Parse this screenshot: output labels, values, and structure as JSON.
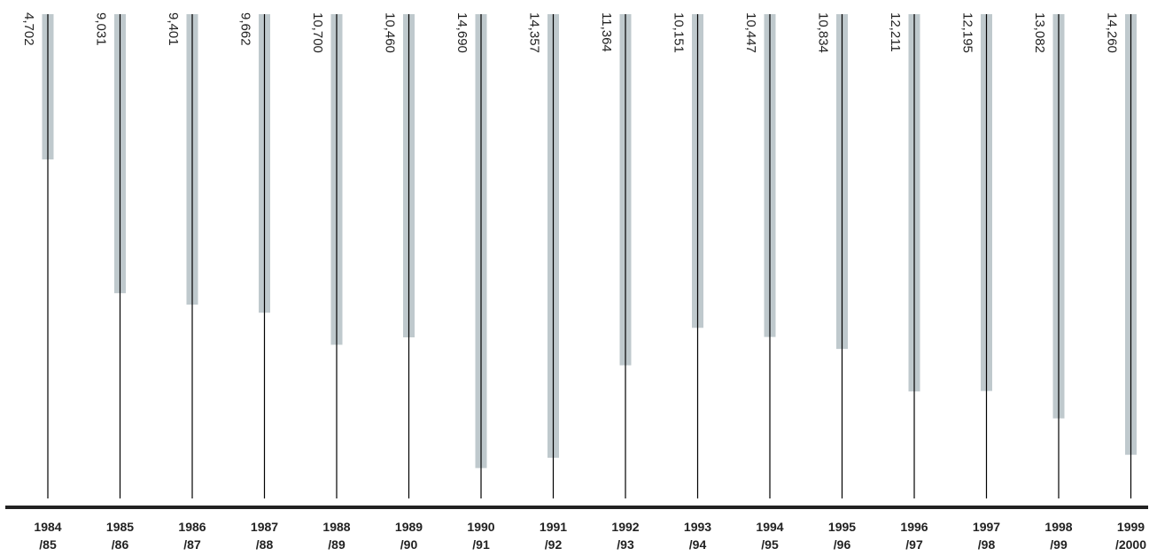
{
  "chart_data": {
    "type": "bar",
    "orientation": "vertical-hanging",
    "categories": [
      [
        "1984",
        "/85"
      ],
      [
        "1985",
        "/86"
      ],
      [
        "1986",
        "/87"
      ],
      [
        "1987",
        "/88"
      ],
      [
        "1988",
        "/89"
      ],
      [
        "1989",
        "/90"
      ],
      [
        "1990",
        "/91"
      ],
      [
        "1991",
        "/92"
      ],
      [
        "1992",
        "/93"
      ],
      [
        "1993",
        "/94"
      ],
      [
        "1994",
        "/95"
      ],
      [
        "1995",
        "/96"
      ],
      [
        "1996",
        "/97"
      ],
      [
        "1997",
        "/98"
      ],
      [
        "1998",
        "/99"
      ],
      [
        "1999",
        "/2000"
      ]
    ],
    "values": [
      4702,
      9031,
      9401,
      9662,
      10700,
      10460,
      14690,
      14357,
      11364,
      10151,
      10447,
      10834,
      12211,
      12195,
      13082,
      14260
    ],
    "value_labels": [
      "4,702",
      "9,031",
      "9,401",
      "9,662",
      "10,700",
      "10,460",
      "14,690",
      "14,357",
      "11,364",
      "10,151",
      "10,447",
      "10,834",
      "12,211",
      "12,195",
      "13,082",
      "14,260"
    ],
    "title": "",
    "xlabel": "",
    "ylabel": "",
    "ylim": [
      0,
      40000
    ],
    "grid": false,
    "legend": "none",
    "colors": {
      "bar": "#bfc9cd",
      "line": "#000000",
      "baseline": "#222222",
      "text": "#222222"
    }
  }
}
